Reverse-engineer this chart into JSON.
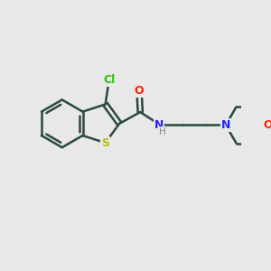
{
  "background_color": "#e8e8e8",
  "bond_color": "#2a4a3a",
  "bond_width": 1.8,
  "atom_colors": {
    "Cl": "#22cc00",
    "S": "#bbbb00",
    "O": "#ff2200",
    "N": "#2222ff",
    "C": "#2a4a3a",
    "H": "#888888"
  },
  "font_size": 8.5,
  "fig_width": 3.0,
  "fig_height": 3.0,
  "dpi": 100,
  "xlim": [
    0,
    10
  ],
  "ylim": [
    0,
    10
  ]
}
